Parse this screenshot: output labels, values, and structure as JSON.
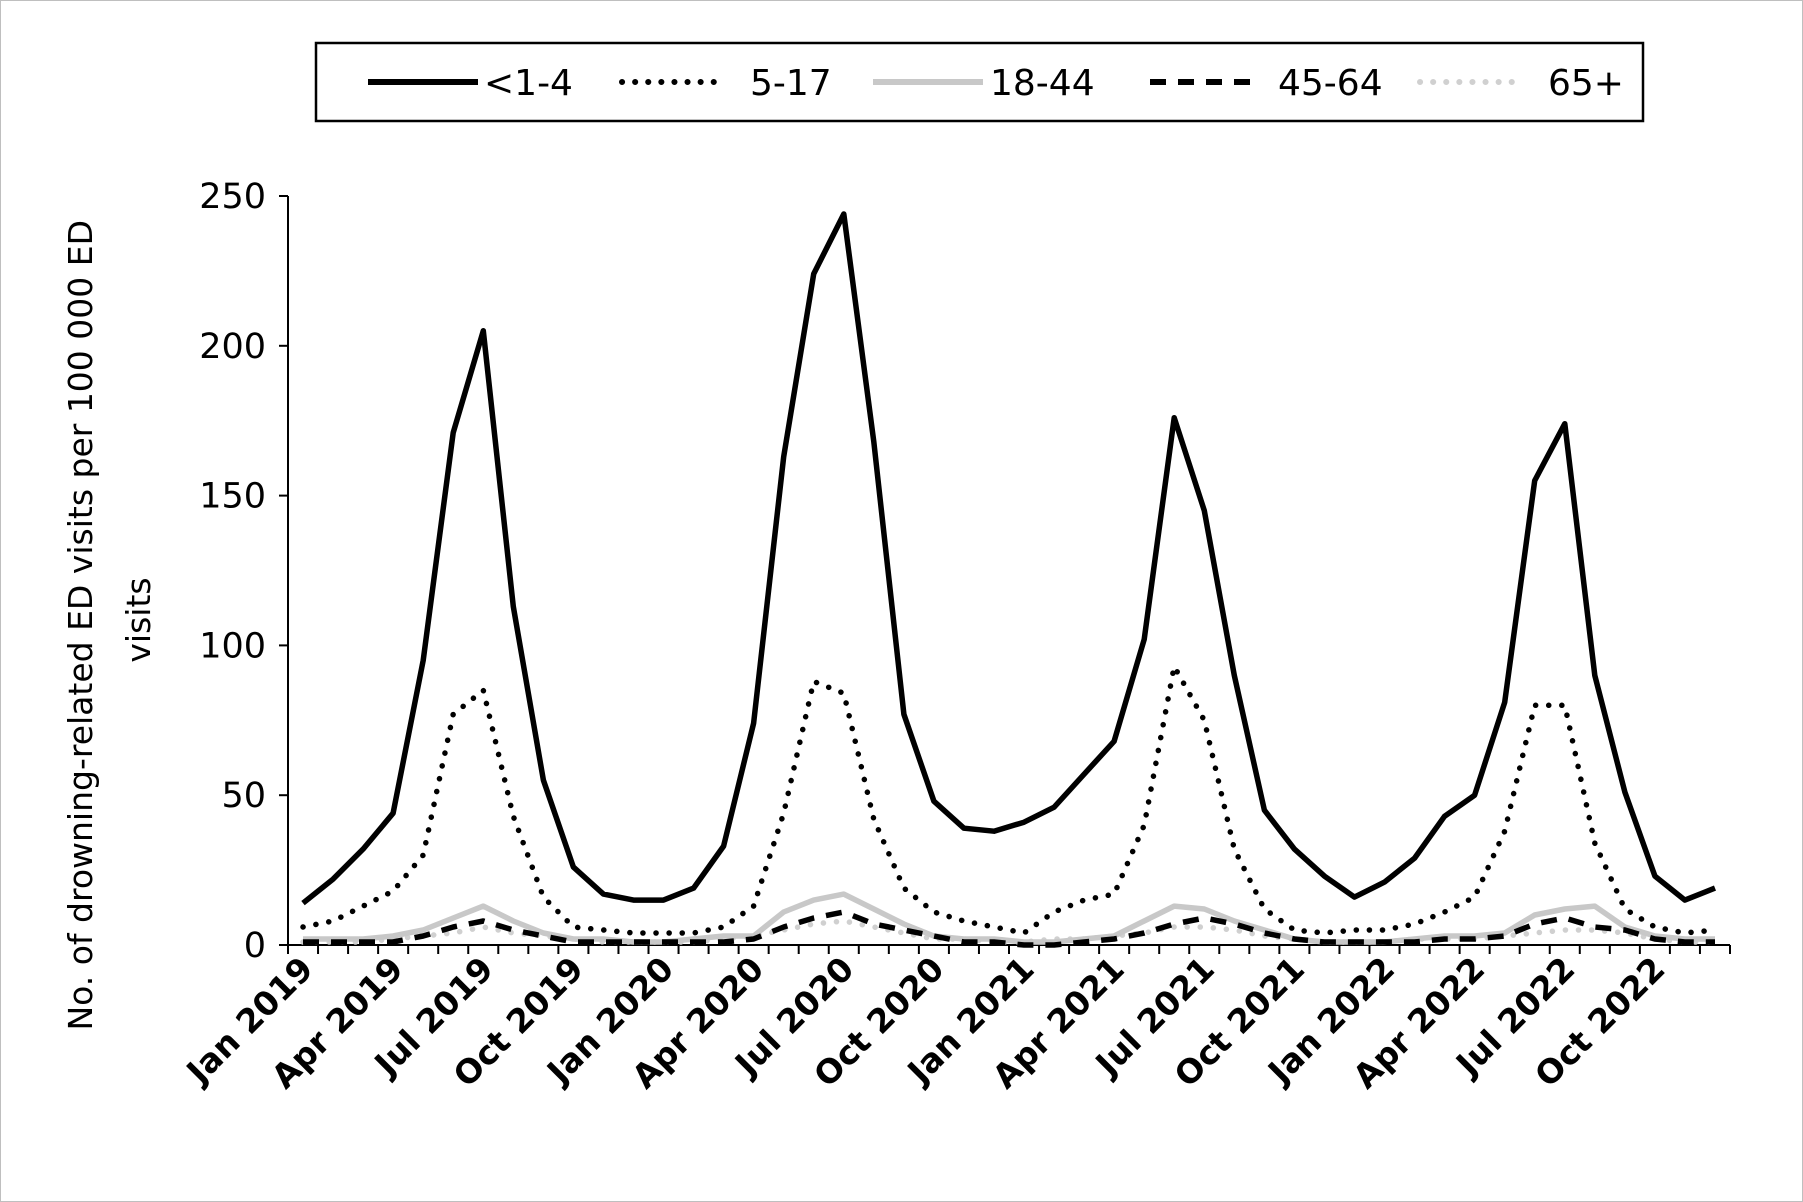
{
  "chart_data": {
    "type": "line",
    "title": "",
    "xlabel": "",
    "ylabel_lines": [
      "No. of drowning-related ED visits per 100 000 ED",
      "visits"
    ],
    "ylim": [
      0,
      250
    ],
    "yticks": [
      0,
      50,
      100,
      150,
      200,
      250
    ],
    "grid": false,
    "legend_position": "top",
    "x": [
      "Jan 2019",
      "Feb 2019",
      "Mar 2019",
      "Apr 2019",
      "May 2019",
      "Jun 2019",
      "Jul 2019",
      "Aug 2019",
      "Sep 2019",
      "Oct 2019",
      "Nov 2019",
      "Dec 2019",
      "Jan 2020",
      "Feb 2020",
      "Mar 2020",
      "Apr 2020",
      "May 2020",
      "Jun 2020",
      "Jul 2020",
      "Aug 2020",
      "Sep 2020",
      "Oct 2020",
      "Nov 2020",
      "Dec 2020",
      "Jan 2021",
      "Feb 2021",
      "Mar 2021",
      "Apr 2021",
      "May 2021",
      "Jun 2021",
      "Jul 2021",
      "Aug 2021",
      "Sep 2021",
      "Oct 2021",
      "Nov 2021",
      "Dec 2021",
      "Jan 2022",
      "Feb 2022",
      "Mar 2022",
      "Apr 2022",
      "May 2022",
      "Jun 2022",
      "Jul 2022",
      "Aug 2022",
      "Sep 2022",
      "Oct 2022",
      "Nov 2022",
      "Dec 2022"
    ],
    "xtick_labels": [
      "Jan 2019",
      "Apr 2019",
      "Jul 2019",
      "Oct 2019",
      "Jan 2020",
      "Apr 2020",
      "Jul 2020",
      "Oct 2020",
      "Jan 2021",
      "Apr 2021",
      "Jul 2021",
      "Oct 2021",
      "Jan 2022",
      "Apr 2022",
      "Jul 2022",
      "Oct 2022"
    ],
    "series": [
      {
        "name": "<1-4",
        "style": "solid-thick",
        "color": "#000000",
        "values": [
          14,
          22,
          32,
          44,
          95,
          171,
          205,
          113,
          55,
          26,
          17,
          15,
          15,
          19,
          33,
          74,
          163,
          224,
          244,
          168,
          77,
          48,
          39,
          38,
          41,
          46,
          57,
          68,
          102,
          176,
          145,
          90,
          45,
          32,
          23,
          16,
          21,
          29,
          43,
          50,
          81,
          155,
          174,
          90,
          51,
          23,
          15,
          19
        ]
      },
      {
        "name": "5-17",
        "style": "dotted",
        "color": "#000000",
        "values": [
          6,
          8,
          13,
          18,
          30,
          77,
          85,
          43,
          16,
          6,
          5,
          4,
          4,
          4,
          6,
          13,
          44,
          88,
          84,
          42,
          19,
          11,
          8,
          6,
          4,
          11,
          15,
          17,
          40,
          93,
          75,
          32,
          12,
          5,
          4,
          5,
          5,
          7,
          11,
          16,
          38,
          80,
          80,
          34,
          12,
          6,
          4,
          5
        ]
      },
      {
        "name": "18-44",
        "style": "solid-gray",
        "color": "#c8c8c8",
        "values": [
          2,
          2,
          2,
          3,
          5,
          9,
          13,
          8,
          4,
          2,
          2,
          1,
          1,
          2,
          3,
          3,
          11,
          15,
          17,
          12,
          7,
          3,
          2,
          2,
          1,
          1,
          2,
          3,
          8,
          13,
          12,
          8,
          5,
          2,
          1,
          1,
          1,
          2,
          3,
          3,
          4,
          10,
          12,
          13,
          6,
          3,
          2,
          2
        ]
      },
      {
        "name": "45-64",
        "style": "dashed",
        "color": "#000000",
        "values": [
          1,
          1,
          1,
          1,
          3,
          6,
          8,
          5,
          3,
          1,
          1,
          1,
          1,
          1,
          1,
          2,
          6,
          9,
          11,
          7,
          5,
          3,
          1,
          1,
          0,
          0,
          1,
          2,
          4,
          7,
          9,
          7,
          4,
          2,
          1,
          1,
          1,
          1,
          2,
          2,
          3,
          7,
          9,
          6,
          5,
          2,
          1,
          1
        ]
      },
      {
        "name": "65+",
        "style": "dotted-gray",
        "color": "#d0d0d0",
        "values": [
          1,
          1,
          1,
          2,
          3,
          4,
          6,
          4,
          3,
          2,
          1,
          1,
          1,
          1,
          2,
          3,
          5,
          7,
          8,
          6,
          4,
          2,
          2,
          1,
          1,
          2,
          2,
          3,
          4,
          6,
          6,
          5,
          3,
          2,
          1,
          1,
          1,
          2,
          2,
          2,
          3,
          4,
          5,
          5,
          4,
          2,
          1,
          1
        ]
      }
    ]
  }
}
